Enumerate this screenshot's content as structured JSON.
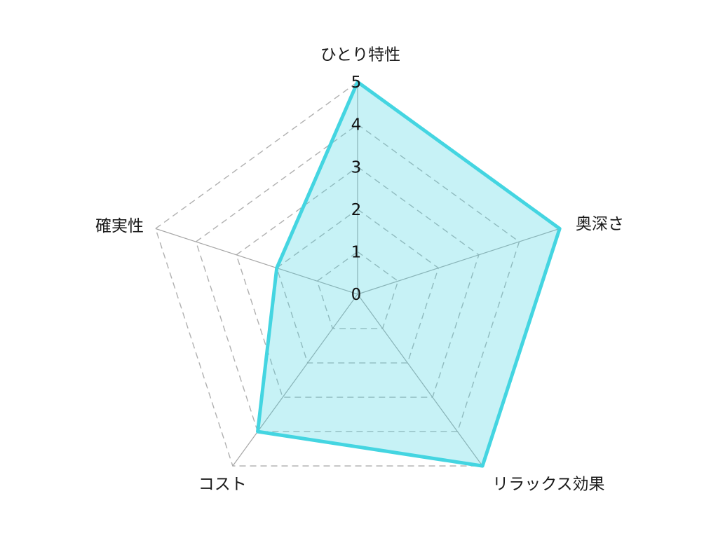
{
  "chart_data": {
    "type": "radar",
    "categories": [
      "ひとり特性",
      "奥深さ",
      "リラックス効果",
      "コスト",
      "確実性"
    ],
    "values": [
      5,
      5,
      5,
      4,
      2
    ],
    "ticks": [
      0,
      1,
      2,
      3,
      4,
      5
    ],
    "rmin": 0,
    "rmax": 5,
    "title": "",
    "legend": null,
    "grid": "dashed-concentric-pentagons",
    "tick_labels_axis": "top",
    "colors": {
      "background": "#ffffff",
      "series_stroke": "#44D5E1",
      "series_fill": "rgba(68, 213, 225, 0.30)",
      "grid_line": "#b0b0b0",
      "axis_line": "#a6a6a6",
      "label_text": "#1a1a1a"
    }
  }
}
